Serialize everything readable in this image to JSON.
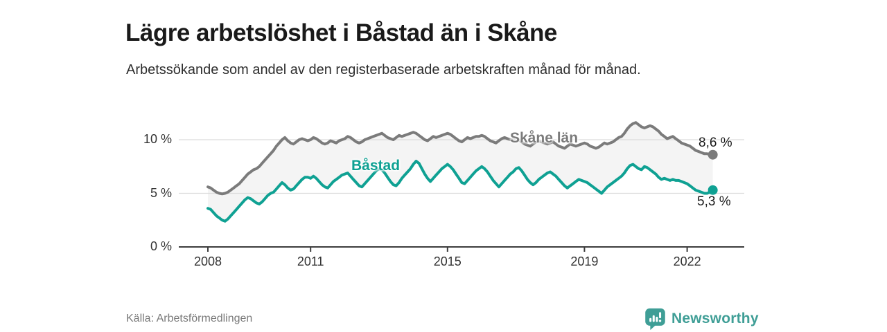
{
  "header": {
    "title": "Lägre arbetslöshet i Båstad än i Skåne",
    "subtitle": "Arbetssökande som andel av den registerbaserade arbetskraften månad för månad."
  },
  "chart_data": {
    "type": "line",
    "title": "Lägre arbetslöshet i Båstad än i Skåne",
    "xlabel": "",
    "ylabel": "Arbetssökande som andel av den registerbaserade arbetskraften",
    "x_start_year": 2008,
    "points_per_year": 12,
    "x_tick_years": [
      2008,
      2011,
      2015,
      2019,
      2022
    ],
    "x_tick_labels": [
      "2008",
      "2011",
      "2015",
      "2019",
      "2022"
    ],
    "y_ticks": [
      0,
      5,
      10
    ],
    "y_tick_labels": [
      "0 %",
      "5 %",
      "10 %"
    ],
    "ylim": [
      0,
      12.3
    ],
    "grid": true,
    "legend_position": "inline-labels",
    "band_fill": "#f4f4f4",
    "grid_color": "#dcdcdc",
    "axis_color": "#3c3c3c",
    "series": [
      {
        "name": "Skåne län",
        "color": "#7b7b7b",
        "end_label": "8,6 %",
        "end_value": 8.6,
        "values": [
          5.6,
          5.5,
          5.3,
          5.1,
          5.0,
          4.95,
          5.0,
          5.1,
          5.3,
          5.5,
          5.7,
          5.9,
          6.2,
          6.5,
          6.8,
          7.0,
          7.2,
          7.3,
          7.5,
          7.8,
          8.1,
          8.4,
          8.7,
          9.0,
          9.4,
          9.7,
          10.0,
          10.2,
          9.9,
          9.7,
          9.6,
          9.8,
          10.0,
          10.1,
          10.0,
          9.9,
          10.0,
          10.2,
          10.1,
          9.9,
          9.7,
          9.6,
          9.7,
          9.9,
          9.8,
          9.7,
          9.9,
          10.0,
          10.1,
          10.3,
          10.2,
          10.0,
          9.8,
          9.7,
          9.8,
          10.0,
          10.1,
          10.2,
          10.3,
          10.4,
          10.5,
          10.6,
          10.4,
          10.2,
          10.1,
          10.0,
          10.2,
          10.4,
          10.3,
          10.4,
          10.5,
          10.6,
          10.7,
          10.6,
          10.4,
          10.2,
          10.0,
          9.9,
          10.1,
          10.3,
          10.2,
          10.3,
          10.4,
          10.5,
          10.6,
          10.5,
          10.3,
          10.1,
          9.9,
          9.8,
          10.0,
          10.2,
          10.1,
          10.2,
          10.3,
          10.3,
          10.4,
          10.3,
          10.1,
          9.9,
          9.8,
          9.7,
          9.9,
          10.1,
          10.2,
          10.1,
          10.0,
          10.0,
          10.1,
          10.0,
          9.8,
          9.6,
          9.5,
          9.4,
          9.6,
          9.8,
          9.9,
          9.8,
          9.7,
          9.6,
          9.7,
          9.8,
          9.6,
          9.4,
          9.3,
          9.2,
          9.4,
          9.6,
          9.5,
          9.4,
          9.5,
          9.6,
          9.7,
          9.6,
          9.4,
          9.3,
          9.2,
          9.3,
          9.5,
          9.7,
          9.6,
          9.7,
          9.8,
          10.0,
          10.2,
          10.3,
          10.6,
          11.0,
          11.3,
          11.5,
          11.6,
          11.4,
          11.2,
          11.1,
          11.2,
          11.3,
          11.2,
          11.0,
          10.8,
          10.5,
          10.3,
          10.1,
          10.2,
          10.3,
          10.1,
          9.9,
          9.7,
          9.6,
          9.5,
          9.4,
          9.2,
          9.0,
          8.9,
          8.8,
          8.7,
          8.7,
          8.6,
          8.6
        ]
      },
      {
        "name": "Båstad",
        "color": "#0fa193",
        "end_label": "5,3 %",
        "end_value": 5.3,
        "values": [
          3.6,
          3.5,
          3.2,
          2.9,
          2.7,
          2.5,
          2.4,
          2.6,
          2.9,
          3.2,
          3.5,
          3.8,
          4.1,
          4.4,
          4.6,
          4.5,
          4.3,
          4.1,
          4.0,
          4.2,
          4.5,
          4.8,
          5.0,
          5.1,
          5.4,
          5.7,
          6.0,
          5.8,
          5.5,
          5.3,
          5.4,
          5.7,
          6.0,
          6.3,
          6.5,
          6.5,
          6.4,
          6.6,
          6.4,
          6.1,
          5.8,
          5.6,
          5.5,
          5.8,
          6.1,
          6.3,
          6.5,
          6.7,
          6.8,
          6.9,
          6.6,
          6.3,
          6.0,
          5.7,
          5.6,
          5.9,
          6.2,
          6.5,
          6.8,
          7.1,
          7.3,
          7.2,
          6.9,
          6.5,
          6.1,
          5.8,
          5.7,
          6.0,
          6.4,
          6.7,
          7.0,
          7.3,
          7.7,
          8.0,
          7.8,
          7.3,
          6.8,
          6.4,
          6.1,
          6.4,
          6.7,
          7.0,
          7.3,
          7.5,
          7.7,
          7.5,
          7.2,
          6.8,
          6.4,
          6.0,
          5.9,
          6.2,
          6.5,
          6.8,
          7.1,
          7.3,
          7.5,
          7.3,
          7.0,
          6.6,
          6.2,
          5.9,
          5.6,
          5.9,
          6.2,
          6.5,
          6.8,
          7.0,
          7.3,
          7.4,
          7.1,
          6.7,
          6.3,
          6.0,
          5.8,
          6.0,
          6.3,
          6.5,
          6.7,
          6.9,
          7.0,
          6.8,
          6.6,
          6.3,
          6.0,
          5.7,
          5.5,
          5.7,
          5.9,
          6.1,
          6.3,
          6.2,
          6.1,
          6.0,
          5.8,
          5.6,
          5.4,
          5.2,
          5.0,
          5.3,
          5.6,
          5.8,
          6.0,
          6.2,
          6.4,
          6.6,
          6.9,
          7.3,
          7.6,
          7.7,
          7.5,
          7.3,
          7.2,
          7.5,
          7.4,
          7.2,
          7.0,
          6.8,
          6.5,
          6.3,
          6.4,
          6.3,
          6.2,
          6.3,
          6.2,
          6.2,
          6.1,
          6.0,
          5.9,
          5.7,
          5.5,
          5.3,
          5.2,
          5.1,
          5.0,
          5.0,
          5.1,
          5.3
        ]
      }
    ]
  },
  "footer": {
    "source": "Källa: Arbetsförmedlingen",
    "brand": "Newsworthy"
  },
  "colors": {
    "brand_teal": "#3f9e96",
    "title_text": "#1a1a1a",
    "axis_text": "#333333"
  }
}
